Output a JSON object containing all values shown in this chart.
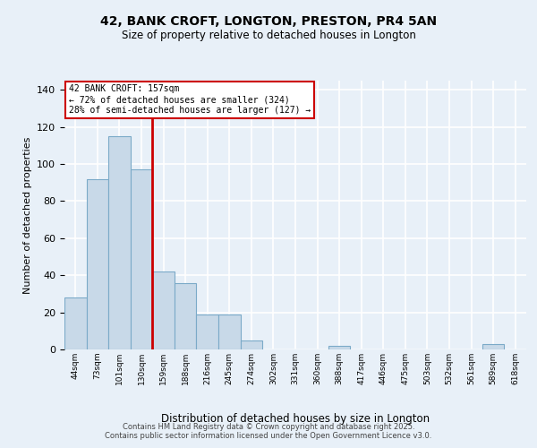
{
  "title": "42, BANK CROFT, LONGTON, PRESTON, PR4 5AN",
  "subtitle": "Size of property relative to detached houses in Longton",
  "xlabel": "Distribution of detached houses by size in Longton",
  "ylabel": "Number of detached properties",
  "footnote1": "Contains HM Land Registry data © Crown copyright and database right 2025.",
  "footnote2": "Contains public sector information licensed under the Open Government Licence v3.0.",
  "bar_color": "#c8d9e8",
  "bar_edge_color": "#7baac8",
  "background_color": "#e8f0f8",
  "grid_color": "#ffffff",
  "annotation_box_color": "#cc0000",
  "vline_color": "#cc0000",
  "categories": [
    "44sqm",
    "73sqm",
    "101sqm",
    "130sqm",
    "159sqm",
    "188sqm",
    "216sqm",
    "245sqm",
    "274sqm",
    "302sqm",
    "331sqm",
    "360sqm",
    "388sqm",
    "417sqm",
    "446sqm",
    "475sqm",
    "503sqm",
    "532sqm",
    "561sqm",
    "589sqm",
    "618sqm"
  ],
  "values": [
    28,
    92,
    115,
    97,
    42,
    36,
    19,
    19,
    5,
    0,
    0,
    0,
    2,
    0,
    0,
    0,
    0,
    0,
    0,
    3,
    0
  ],
  "property_label": "42 BANK CROFT: 157sqm",
  "annotation_line1": "← 72% of detached houses are smaller (324)",
  "annotation_line2": "28% of semi-detached houses are larger (127) →",
  "vline_pos": 3.5,
  "ylim": [
    0,
    145
  ],
  "yticks": [
    0,
    20,
    40,
    60,
    80,
    100,
    120,
    140
  ]
}
